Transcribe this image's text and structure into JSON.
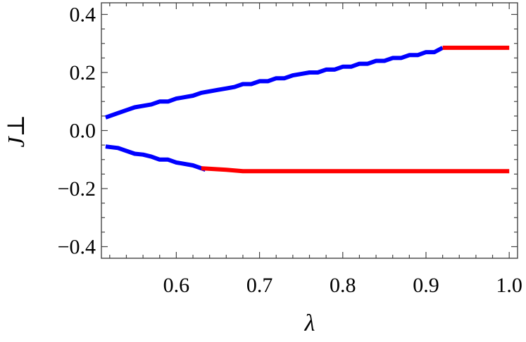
{
  "chart_data": {
    "type": "line",
    "title": "",
    "xlabel": "λ",
    "ylabel": "J⊥",
    "xlim": [
      0.51,
      1.01
    ],
    "ylim": [
      -0.44,
      0.44
    ],
    "x_ticks": [
      0.6,
      0.7,
      0.8,
      0.9,
      1.0
    ],
    "x_tick_labels": [
      "0.6",
      "0.7",
      "0.8",
      "0.9",
      "1.0"
    ],
    "y_ticks": [
      -0.4,
      -0.2,
      0.0,
      0.2,
      0.4
    ],
    "y_tick_labels": [
      "−0.4",
      "−0.2",
      "0.0",
      "0.2",
      "0.4"
    ],
    "grid": false,
    "legend": "none",
    "series": [
      {
        "color": "#0000ff",
        "x": [
          0.515,
          0.53,
          0.54,
          0.55,
          0.56,
          0.57,
          0.58,
          0.59,
          0.6,
          0.61,
          0.62,
          0.63,
          0.64,
          0.65,
          0.66,
          0.67,
          0.68,
          0.69,
          0.7,
          0.71,
          0.72,
          0.73,
          0.74,
          0.75,
          0.76,
          0.77,
          0.78,
          0.79,
          0.8,
          0.81,
          0.82,
          0.83,
          0.84,
          0.85,
          0.86,
          0.87,
          0.88,
          0.89,
          0.9,
          0.91,
          0.92
        ],
        "y": [
          0.045,
          0.06,
          0.07,
          0.08,
          0.085,
          0.09,
          0.1,
          0.1,
          0.11,
          0.115,
          0.12,
          0.13,
          0.135,
          0.14,
          0.145,
          0.15,
          0.16,
          0.16,
          0.17,
          0.17,
          0.18,
          0.18,
          0.19,
          0.195,
          0.2,
          0.2,
          0.21,
          0.21,
          0.22,
          0.22,
          0.23,
          0.23,
          0.24,
          0.24,
          0.25,
          0.25,
          0.26,
          0.26,
          0.27,
          0.27,
          0.285
        ]
      },
      {
        "color": "#0000ff",
        "x": [
          0.515,
          0.53,
          0.54,
          0.55,
          0.56,
          0.57,
          0.58,
          0.59,
          0.6,
          0.61,
          0.62,
          0.635
        ],
        "y": [
          -0.055,
          -0.06,
          -0.07,
          -0.08,
          -0.083,
          -0.09,
          -0.1,
          -0.1,
          -0.11,
          -0.115,
          -0.12,
          -0.135
        ]
      },
      {
        "color": "#ff0000",
        "x": [
          0.92,
          1.0
        ],
        "y": [
          0.285,
          0.285
        ]
      },
      {
        "color": "#ff0000",
        "x": [
          0.63,
          0.66,
          0.68,
          0.7,
          0.8,
          0.9,
          1.0
        ],
        "y": [
          -0.13,
          -0.135,
          -0.14,
          -0.14,
          -0.14,
          -0.14,
          -0.14
        ]
      }
    ]
  }
}
